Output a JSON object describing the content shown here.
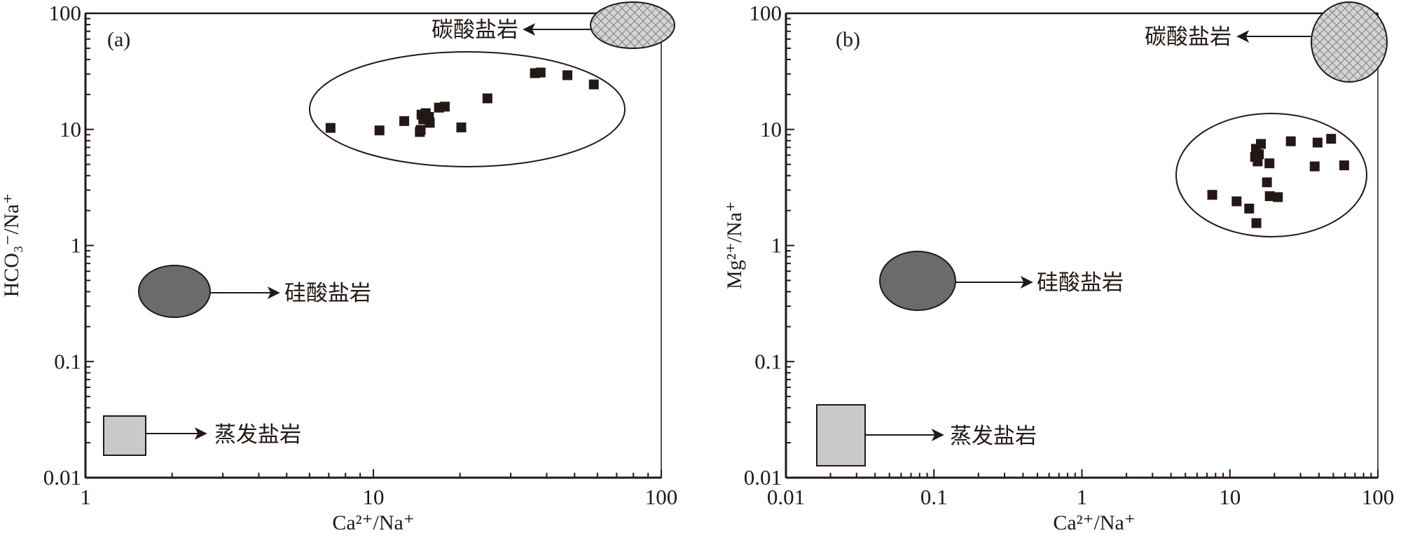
{
  "chart_data": [
    {
      "type": "scatter",
      "panel_label": "(a)",
      "xlabel": "Ca²⁺/Na⁺",
      "ylabel": "HCO₃⁻/Na⁺",
      "xscale": "log",
      "yscale": "log",
      "xlim": [
        1,
        100
      ],
      "ylim": [
        0.01,
        100
      ],
      "xticks": [
        "1",
        "10",
        "100"
      ],
      "yticks": [
        "0.01",
        "0.1",
        "1",
        "10",
        "100"
      ],
      "grid": false,
      "marker": "square",
      "marker_color": "#231815",
      "points": [
        {
          "x": 7.1,
          "y": 10.3
        },
        {
          "x": 10.5,
          "y": 9.8
        },
        {
          "x": 12.8,
          "y": 11.8
        },
        {
          "x": 14.6,
          "y": 9.9
        },
        {
          "x": 14.5,
          "y": 9.5
        },
        {
          "x": 14.7,
          "y": 13.4
        },
        {
          "x": 15.6,
          "y": 12.8
        },
        {
          "x": 15.7,
          "y": 11.4
        },
        {
          "x": 16.9,
          "y": 15.4
        },
        {
          "x": 17.7,
          "y": 15.7
        },
        {
          "x": 24.9,
          "y": 18.5
        },
        {
          "x": 20.2,
          "y": 10.4
        },
        {
          "x": 36.4,
          "y": 30.5
        },
        {
          "x": 38.1,
          "y": 30.9
        },
        {
          "x": 47.2,
          "y": 29.3
        },
        {
          "x": 58.3,
          "y": 24.4
        },
        {
          "x": 15.2,
          "y": 13.8
        },
        {
          "x": 14.9,
          "y": 12.2
        }
      ],
      "annotations": {
        "carbonate": "碳酸盐岩",
        "silicate": "硅酸盐岩",
        "evaporite": "蒸发盐岩"
      }
    },
    {
      "type": "scatter",
      "panel_label": "(b)",
      "xlabel": "Ca²⁺/Na⁺",
      "ylabel": "Mg²⁺/Na⁺",
      "xscale": "log",
      "yscale": "log",
      "xlim": [
        0.01,
        100
      ],
      "ylim": [
        0.01,
        100
      ],
      "xticks": [
        "0.01",
        "0.1",
        "1",
        "10",
        "100"
      ],
      "yticks": [
        "0.01",
        "0.1",
        "1",
        "10",
        "100"
      ],
      "grid": false,
      "marker": "square",
      "marker_color": "#231815",
      "points": [
        {
          "x": 7.6,
          "y": 2.73
        },
        {
          "x": 11.1,
          "y": 2.4
        },
        {
          "x": 13.5,
          "y": 2.08
        },
        {
          "x": 15.1,
          "y": 1.56
        },
        {
          "x": 16.2,
          "y": 7.5
        },
        {
          "x": 15.7,
          "y": 6.1
        },
        {
          "x": 15.4,
          "y": 5.3
        },
        {
          "x": 18.5,
          "y": 5.1
        },
        {
          "x": 17.8,
          "y": 3.5
        },
        {
          "x": 18.6,
          "y": 2.66
        },
        {
          "x": 21.1,
          "y": 2.61
        },
        {
          "x": 25.8,
          "y": 7.9
        },
        {
          "x": 39.1,
          "y": 7.7
        },
        {
          "x": 48.3,
          "y": 8.3
        },
        {
          "x": 37.4,
          "y": 4.8
        },
        {
          "x": 59.2,
          "y": 4.9
        },
        {
          "x": 15.0,
          "y": 6.8
        },
        {
          "x": 14.8,
          "y": 5.8
        }
      ],
      "annotations": {
        "carbonate": "碳酸盐岩",
        "silicate": "硅酸盐岩",
        "evaporite": "蒸发盐岩"
      }
    }
  ],
  "colors": {
    "ink": "#231815",
    "silicate_fill": "#6b6b6b",
    "evaporite_fill": "#c8c9c9",
    "carbonate_fill": "#d4d4d4"
  }
}
